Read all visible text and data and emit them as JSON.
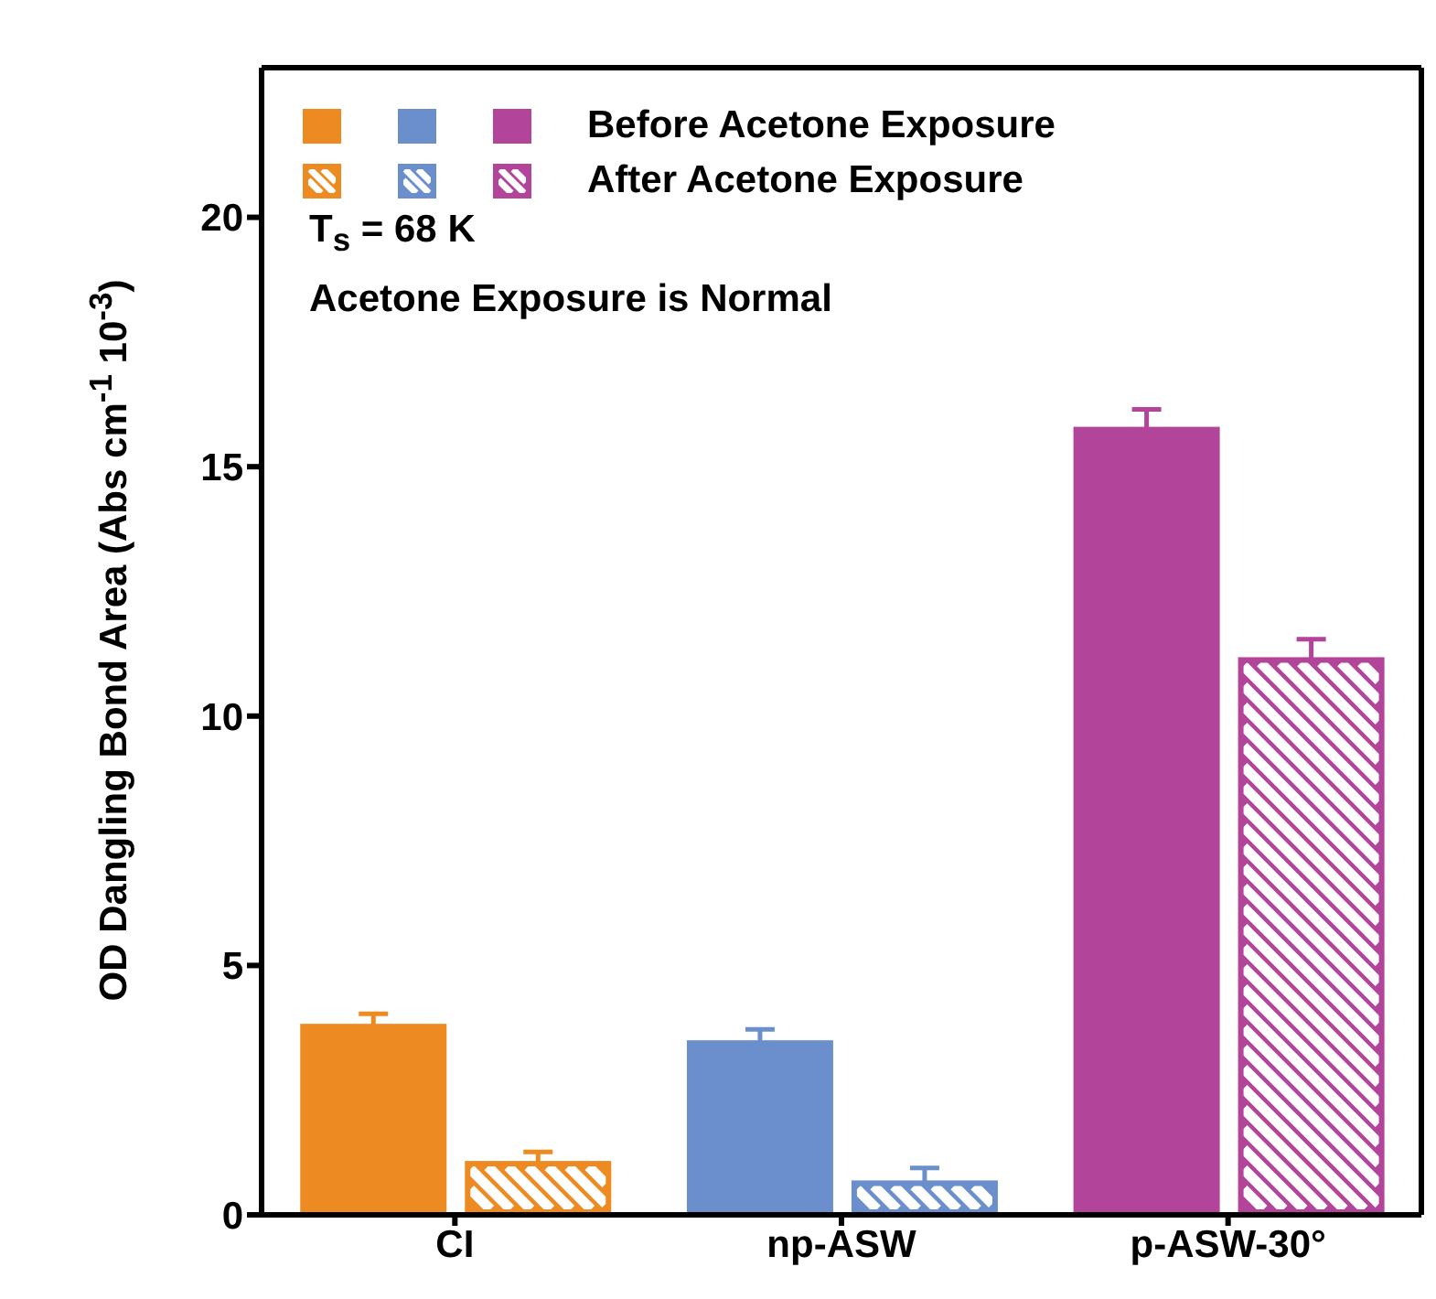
{
  "chart_data": {
    "type": "bar",
    "ylabel": "OD Dangling Bond Area (Abs cm$^{-1}$ 10$^{-3}$)",
    "categories": [
      "CI",
      "np-ASW",
      "p-ASW-30°"
    ],
    "series": [
      {
        "name": "Before Acetone Exposure",
        "colors": [
          "#ee8a22",
          "#6a8fcc",
          "#b2449a"
        ],
        "values": [
          3.83,
          3.5,
          15.8
        ],
        "errors": [
          0.2,
          0.22,
          0.35
        ]
      },
      {
        "name": "After Acetone Exposure",
        "colors": [
          "#ee8a22",
          "#6a8fcc",
          "#b2449a"
        ],
        "values": [
          1.08,
          0.69,
          11.18
        ],
        "errors": [
          0.18,
          0.25,
          0.36
        ]
      }
    ],
    "ylim": [
      0,
      23
    ],
    "yticks": [
      0,
      5,
      10,
      15,
      20
    ],
    "legend": "top left",
    "grid": false,
    "annotations": [
      "T$_{s}$ = 68 K",
      "Acetone Exposure is Normal"
    ]
  }
}
